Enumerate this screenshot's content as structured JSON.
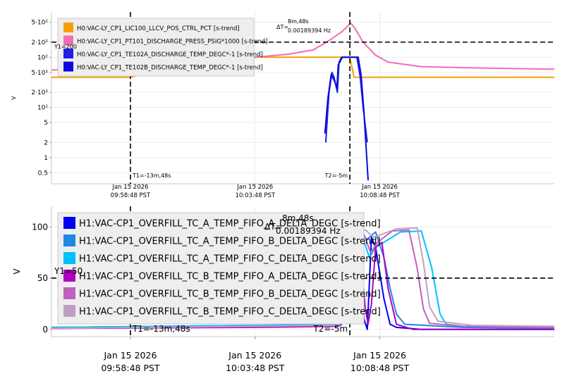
{
  "chart_data": [
    {
      "type": "line",
      "ylabel": "V",
      "yscale": "log",
      "ylim": [
        0.3,
        800
      ],
      "ytick_labels": [
        {
          "v": 500,
          "label": "5·10²"
        },
        {
          "v": 200,
          "label": "2·10²"
        },
        {
          "v": 100,
          "label": "10²"
        },
        {
          "v": 50,
          "label": "5·10¹"
        },
        {
          "v": 20,
          "label": "2·10¹"
        },
        {
          "v": 10,
          "label": "10¹"
        },
        {
          "v": 5,
          "label": "5"
        },
        {
          "v": 2,
          "label": "2"
        },
        {
          "v": 1,
          "label": "1"
        },
        {
          "v": 0.5,
          "label": "0.5"
        }
      ],
      "x_ticks": [
        {
          "t": 0,
          "date": "Jan 15 2026",
          "time": "09:58:48 PST"
        },
        {
          "t": 300,
          "date": "Jan 15 2026",
          "time": "10:03:48 PST"
        },
        {
          "t": 600,
          "date": "Jan 15 2026",
          "time": "10:08:48 PST"
        }
      ],
      "xlim_seconds_from_first_tick": [
        -190,
        1020
      ],
      "legend": [
        {
          "name": "H0:VAC-LY_CP1_LIC100_LLCV_POS_CTRL_PCT [s-trend]",
          "color": "#f5a000"
        },
        {
          "name": "H0:VAC-LY_CP1_PT101_DISCHARGE_PRESS_PSIG*1000 [s-trend]",
          "color": "#f06eb4"
        },
        {
          "name": "H0:VAC-LY_CP1_TE102A_DISCHARGE_TEMP_DEGC*-1 [s-trend]",
          "color": "#1f1fe6"
        },
        {
          "name": "H0:VAC-LY_CP1_TE102B_DISCHARGE_TEMP_DEGC*-1 [s-trend]",
          "color": "#0a0adc"
        }
      ],
      "cursors": {
        "T1": {
          "t": 0,
          "label": "T1=-13m,48s"
        },
        "T2": {
          "t": 528,
          "label": "T2=-5m"
        },
        "Y1": {
          "v": 200,
          "label": "Y1=200"
        },
        "delta_label": "ΔT=",
        "delta_time": "8m,48s",
        "delta_freq": "0.00189394 Hz"
      },
      "series": [
        {
          "name": "LLCV_POS",
          "points": [
            [
              -190,
              40
            ],
            [
              0,
              40
            ],
            [
              120,
              70
            ],
            [
              300,
              100
            ],
            [
              528,
              100
            ],
            [
              538,
              40
            ],
            [
              1020,
              40
            ]
          ]
        },
        {
          "name": "PRESS",
          "points": [
            [
              -190,
              56
            ],
            [
              -100,
              57
            ],
            [
              0,
              62
            ],
            [
              100,
              72
            ],
            [
              200,
              85
            ],
            [
              300,
              100
            ],
            [
              380,
              115
            ],
            [
              440,
              140
            ],
            [
              480,
              220
            ],
            [
              510,
              330
            ],
            [
              530,
              480
            ],
            [
              540,
              380
            ],
            [
              560,
              200
            ],
            [
              590,
              110
            ],
            [
              620,
              80
            ],
            [
              700,
              65
            ],
            [
              800,
              62
            ],
            [
              900,
              60
            ],
            [
              1020,
              58
            ]
          ]
        },
        {
          "name": "TE102A",
          "points": [
            [
              470,
              2
            ],
            [
              478,
              20
            ],
            [
              485,
              50
            ],
            [
              490,
              40
            ],
            [
              498,
              20
            ],
            [
              502,
              80
            ],
            [
              508,
              100
            ],
            [
              528,
              100
            ],
            [
              545,
              100
            ],
            [
              553,
              40
            ],
            [
              560,
              10
            ],
            [
              570,
              2
            ]
          ]
        },
        {
          "name": "TE102B",
          "points": [
            [
              468,
              3
            ],
            [
              475,
              15
            ],
            [
              483,
              45
            ],
            [
              490,
              35
            ],
            [
              497,
              25
            ],
            [
              500,
              70
            ],
            [
              510,
              100
            ],
            [
              528,
              100
            ],
            [
              548,
              100
            ],
            [
              555,
              45
            ],
            [
              562,
              8
            ],
            [
              572,
              0.35
            ]
          ]
        }
      ]
    },
    {
      "type": "line",
      "ylabel": "V",
      "ylim": [
        -7,
        120
      ],
      "ytick_labels": [
        {
          "v": 100,
          "label": "100"
        },
        {
          "v": 50,
          "label": "50"
        },
        {
          "v": 0,
          "label": "0"
        }
      ],
      "x_ticks": [
        {
          "t": 0,
          "date": "Jan 15 2026",
          "time": "09:58:48 PST"
        },
        {
          "t": 300,
          "date": "Jan 15 2026",
          "time": "10:03:48 PST"
        },
        {
          "t": 600,
          "date": "Jan 15 2026",
          "time": "10:08:48 PST"
        }
      ],
      "xlim_seconds_from_first_tick": [
        -190,
        1020
      ],
      "legend": [
        {
          "name": "H1:VAC-CP1_OVERFILL_TC_A_TEMP_FIFO_A_DELTA_DEGC [s-trend]",
          "color": "#0000ee"
        },
        {
          "name": "H1:VAC-CP1_OVERFILL_TC_A_TEMP_FIFO_B_DELTA_DEGC [s-trend]",
          "color": "#1e88e5"
        },
        {
          "name": "H1:VAC-CP1_OVERFILL_TC_A_TEMP_FIFO_C_DELTA_DEGC [s-trend]",
          "color": "#00bfff"
        },
        {
          "name": "H1:VAC-CP1_OVERFILL_TC_B_TEMP_FIFO_A_DELTA_DEGC [s-trend]",
          "color": "#b000c0"
        },
        {
          "name": "H1:VAC-CP1_OVERFILL_TC_B_TEMP_FIFO_B_DELTA_DEGC [s-trend]",
          "color": "#c060c0"
        },
        {
          "name": "H1:VAC-CP1_OVERFILL_TC_B_TEMP_FIFO_C_DELTA_DEGC [s-trend]",
          "color": "#c0a0c0"
        }
      ],
      "cursors": {
        "T1": {
          "t": 0,
          "label": "T1=-13m,48s"
        },
        "T2": {
          "t": 528,
          "label": "T2=-5m"
        },
        "Y1": {
          "v": 50,
          "label": "Y1=50"
        },
        "delta_label": "ΔT=",
        "delta_time": "8m,48s",
        "delta_freq": "0.00189394 Hz"
      },
      "series": [
        {
          "name": "TC_A_A",
          "points": [
            [
              -190,
              1
            ],
            [
              200,
              2
            ],
            [
              400,
              3
            ],
            [
              500,
              3
            ],
            [
              528,
              10
            ],
            [
              535,
              98
            ],
            [
              550,
              90
            ],
            [
              562,
              10
            ],
            [
              570,
              0
            ],
            [
              580,
              90
            ],
            [
              590,
              80
            ],
            [
              610,
              30
            ],
            [
              625,
              5
            ],
            [
              640,
              2
            ],
            [
              700,
              0
            ],
            [
              900,
              0
            ],
            [
              1020,
              0
            ]
          ]
        },
        {
          "name": "TC_A_B",
          "points": [
            [
              -190,
              2
            ],
            [
              300,
              4
            ],
            [
              500,
              4
            ],
            [
              530,
              20
            ],
            [
              538,
              95
            ],
            [
              555,
              92
            ],
            [
              570,
              88
            ],
            [
              590,
              95
            ],
            [
              610,
              70
            ],
            [
              625,
              40
            ],
            [
              640,
              15
            ],
            [
              660,
              5
            ],
            [
              800,
              2
            ],
            [
              1020,
              1
            ]
          ]
        },
        {
          "name": "TC_A_C",
          "points": [
            [
              -190,
              2
            ],
            [
              300,
              4
            ],
            [
              500,
              5
            ],
            [
              525,
              20
            ],
            [
              532,
              97
            ],
            [
              555,
              95
            ],
            [
              575,
              70
            ],
            [
              590,
              80
            ],
            [
              650,
              95
            ],
            [
              700,
              96
            ],
            [
              725,
              60
            ],
            [
              745,
              15
            ],
            [
              760,
              5
            ],
            [
              800,
              3
            ],
            [
              1020,
              2
            ]
          ]
        },
        {
          "name": "TC_B_A",
          "points": [
            [
              -190,
              1
            ],
            [
              300,
              2
            ],
            [
              500,
              3
            ],
            [
              530,
              15
            ],
            [
              540,
              95
            ],
            [
              552,
              90
            ],
            [
              565,
              20
            ],
            [
              572,
              5
            ],
            [
              580,
              25
            ],
            [
              590,
              80
            ],
            [
              605,
              85
            ],
            [
              620,
              40
            ],
            [
              640,
              5
            ],
            [
              680,
              0
            ],
            [
              1020,
              0
            ]
          ]
        },
        {
          "name": "TC_B_B",
          "points": [
            [
              -190,
              1
            ],
            [
              300,
              3
            ],
            [
              500,
              4
            ],
            [
              530,
              15
            ],
            [
              540,
              96
            ],
            [
              560,
              95
            ],
            [
              578,
              75
            ],
            [
              595,
              85
            ],
            [
              630,
              96
            ],
            [
              670,
              97
            ],
            [
              690,
              60
            ],
            [
              705,
              20
            ],
            [
              720,
              6
            ],
            [
              800,
              3
            ],
            [
              1020,
              2
            ]
          ]
        },
        {
          "name": "TC_B_C",
          "points": [
            [
              -190,
              1
            ],
            [
              300,
              3
            ],
            [
              500,
              4
            ],
            [
              530,
              15
            ],
            [
              540,
              98
            ],
            [
              565,
              97
            ],
            [
              585,
              90
            ],
            [
              600,
              92
            ],
            [
              640,
              98
            ],
            [
              690,
              99
            ],
            [
              705,
              65
            ],
            [
              720,
              22
            ],
            [
              740,
              8
            ],
            [
              820,
              4
            ],
            [
              1020,
              3
            ]
          ]
        }
      ]
    }
  ]
}
